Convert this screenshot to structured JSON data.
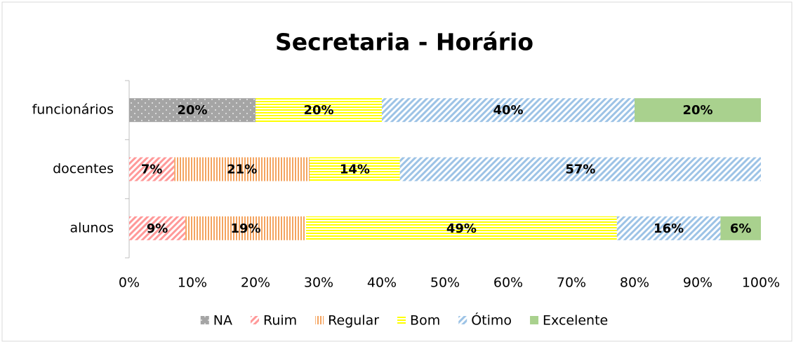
{
  "chart_data": {
    "type": "stacked-bar-horizontal",
    "title": "Secretaria - Horário",
    "categories": [
      "funcionários",
      "docentes",
      "alunos"
    ],
    "series": [
      {
        "name": "NA",
        "color": "#a5a5a5",
        "pattern": "dots",
        "values": [
          20,
          null,
          null
        ],
        "value_labels": [
          "20%",
          null,
          null
        ]
      },
      {
        "name": "Ruim",
        "color": "#ff9999",
        "pattern": "diagonal",
        "values": [
          null,
          7.14,
          8.9
        ],
        "value_labels": [
          null,
          "7%",
          "9%"
        ]
      },
      {
        "name": "Regular",
        "color": "#f4a460",
        "pattern": "vertical",
        "values": [
          null,
          21.43,
          19.1
        ],
        "value_labels": [
          null,
          "21%",
          "19%"
        ]
      },
      {
        "name": "Bom",
        "color": "#ffff00",
        "pattern": "horizontal",
        "values": [
          20,
          14.29,
          49.2
        ],
        "value_labels": [
          "20%",
          "14%",
          "49%"
        ]
      },
      {
        "name": "Ótimo",
        "color": "#9dc3e6",
        "pattern": "diagonal",
        "values": [
          40,
          57.14,
          16.4
        ],
        "value_labels": [
          "40%",
          "57%",
          "16%"
        ]
      },
      {
        "name": "Excelente",
        "color": "#a9d18e",
        "pattern": "solid",
        "values": [
          20,
          null,
          6.4
        ],
        "value_labels": [
          "20%",
          null,
          "6%"
        ]
      }
    ],
    "xlim": [
      0,
      100
    ],
    "xticks": [
      {
        "value": 0,
        "label": "0%"
      },
      {
        "value": 10,
        "label": "10%"
      },
      {
        "value": 20,
        "label": "20%"
      },
      {
        "value": 30,
        "label": "30%"
      },
      {
        "value": 40,
        "label": "40%"
      },
      {
        "value": 50,
        "label": "50%"
      },
      {
        "value": 60,
        "label": "60%"
      },
      {
        "value": 70,
        "label": "70%"
      },
      {
        "value": 80,
        "label": "80%"
      },
      {
        "value": 90,
        "label": "90%"
      },
      {
        "value": 100,
        "label": "100%"
      }
    ],
    "grid": false,
    "legend": "bottom"
  }
}
